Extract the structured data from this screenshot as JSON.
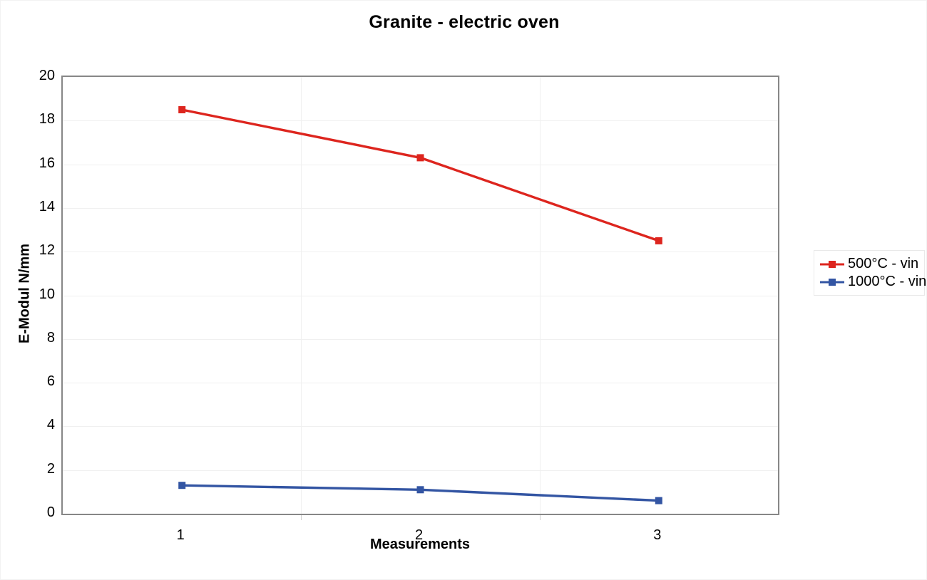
{
  "chart_data": {
    "type": "line",
    "title": "Granite - electric oven",
    "xlabel": "Measurements",
    "ylabel": "E-Modul N/mm",
    "categories": [
      "1",
      "2",
      "3"
    ],
    "series": [
      {
        "name": "500°C - vin",
        "color": "#dd251e",
        "values": [
          18.5,
          16.3,
          12.5
        ]
      },
      {
        "name": "1000°C - vin",
        "color": "#3355a3",
        "values": [
          1.3,
          1.1,
          0.6
        ]
      }
    ],
    "ylim": [
      0,
      20
    ],
    "yticks": [
      0,
      2,
      4,
      6,
      8,
      10,
      12,
      14,
      16,
      18,
      20
    ],
    "grid": "horizontal gridlines every 2 units and vertical gridlines at category boundaries, very light gray",
    "legend_position": "right",
    "marker": "square"
  },
  "colors": {
    "series_red": "#dd251e",
    "series_blue": "#3355a3",
    "axis_border": "#878787",
    "gridline": "#f0f0f0",
    "tick_mark": "#cfcfcf",
    "background": "#ffffff",
    "legend_border": "#e9e9e9",
    "text": "#000000"
  }
}
